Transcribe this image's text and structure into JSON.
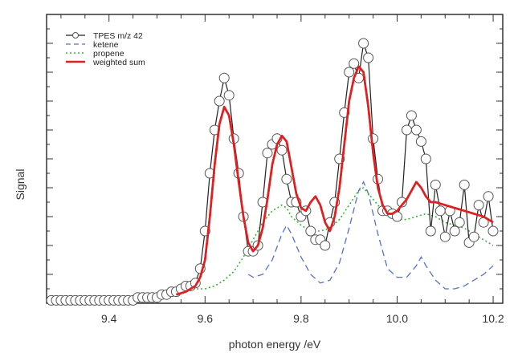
{
  "chart_data": {
    "type": "line",
    "xlabel": "photon energy /eV",
    "ylabel": "Signal",
    "xlim": [
      9.27,
      10.22
    ],
    "ylim": [
      0,
      1.0
    ],
    "x_ticks": [
      "9.4",
      "9.6",
      "9.8",
      "10.0",
      "10.2"
    ],
    "y_tick_labels": false,
    "grid": false,
    "legend_position": "top-left",
    "series": [
      {
        "name": "TPES m/z 42",
        "style": "line-with-open-circles",
        "color": "#222222",
        "x": [
          9.28,
          9.29,
          9.3,
          9.31,
          9.32,
          9.33,
          9.34,
          9.35,
          9.36,
          9.37,
          9.38,
          9.39,
          9.4,
          9.41,
          9.42,
          9.43,
          9.44,
          9.45,
          9.46,
          9.47,
          9.48,
          9.49,
          9.5,
          9.51,
          9.52,
          9.53,
          9.54,
          9.55,
          9.56,
          9.57,
          9.58,
          9.59,
          9.6,
          9.61,
          9.62,
          9.63,
          9.64,
          9.65,
          9.66,
          9.67,
          9.68,
          9.69,
          9.7,
          9.71,
          9.72,
          9.73,
          9.74,
          9.75,
          9.76,
          9.77,
          9.78,
          9.79,
          9.8,
          9.81,
          9.82,
          9.83,
          9.84,
          9.85,
          9.86,
          9.87,
          9.88,
          9.89,
          9.9,
          9.91,
          9.92,
          9.93,
          9.94,
          9.95,
          9.96,
          9.97,
          9.98,
          9.99,
          10.0,
          10.01,
          10.02,
          10.03,
          10.04,
          10.05,
          10.06,
          10.07,
          10.08,
          10.09,
          10.1,
          10.11,
          10.12,
          10.13,
          10.14,
          10.15,
          10.16,
          10.17,
          10.18,
          10.19,
          10.2
        ],
        "values": [
          0.01,
          0.01,
          0.01,
          0.01,
          0.01,
          0.01,
          0.01,
          0.01,
          0.01,
          0.01,
          0.01,
          0.01,
          0.01,
          0.01,
          0.01,
          0.01,
          0.01,
          0.01,
          0.02,
          0.02,
          0.02,
          0.02,
          0.02,
          0.03,
          0.03,
          0.04,
          0.04,
          0.05,
          0.06,
          0.06,
          0.07,
          0.12,
          0.25,
          0.45,
          0.6,
          0.7,
          0.78,
          0.72,
          0.57,
          0.45,
          0.3,
          0.18,
          0.18,
          0.2,
          0.35,
          0.52,
          0.55,
          0.57,
          0.53,
          0.43,
          0.35,
          0.35,
          0.3,
          0.32,
          0.25,
          0.22,
          0.22,
          0.2,
          0.28,
          0.35,
          0.5,
          0.66,
          0.8,
          0.83,
          0.78,
          0.9,
          0.85,
          0.57,
          0.43,
          0.32,
          0.32,
          0.31,
          0.3,
          0.35,
          0.6,
          0.65,
          0.6,
          0.56,
          0.5,
          0.25,
          0.41,
          0.32,
          0.23,
          0.32,
          0.25,
          0.28,
          0.41,
          0.21,
          0.23,
          0.34,
          0.28,
          0.37,
          0.25
        ]
      },
      {
        "name": "ketene",
        "style": "dashed",
        "color": "#5572c8",
        "x": [
          9.69,
          9.7,
          9.72,
          9.74,
          9.76,
          9.77,
          9.78,
          9.8,
          9.82,
          9.84,
          9.86,
          9.88,
          9.9,
          9.92,
          9.93,
          9.94,
          9.96,
          9.98,
          10.0,
          10.02,
          10.04,
          10.05,
          10.06,
          10.08,
          10.1,
          10.12,
          10.14,
          10.16,
          10.18,
          10.2
        ],
        "values": [
          0.1,
          0.09,
          0.1,
          0.15,
          0.24,
          0.27,
          0.24,
          0.16,
          0.1,
          0.07,
          0.08,
          0.14,
          0.26,
          0.39,
          0.42,
          0.38,
          0.24,
          0.12,
          0.09,
          0.09,
          0.13,
          0.16,
          0.13,
          0.08,
          0.05,
          0.05,
          0.06,
          0.08,
          0.1,
          0.13
        ]
      },
      {
        "name": "propene",
        "style": "dotted",
        "color": "#3bb03b",
        "x": [
          9.55,
          9.58,
          9.6,
          9.62,
          9.64,
          9.66,
          9.68,
          9.7,
          9.72,
          9.74,
          9.76,
          9.77,
          9.78,
          9.8,
          9.82,
          9.84,
          9.86,
          9.88,
          9.9,
          9.92,
          9.93,
          9.94,
          9.96,
          9.98,
          10.0,
          10.02,
          10.04,
          10.06,
          10.08,
          10.1,
          10.12,
          10.14,
          10.16,
          10.18,
          10.2
        ],
        "values": [
          0.04,
          0.05,
          0.05,
          0.06,
          0.08,
          0.11,
          0.16,
          0.22,
          0.28,
          0.32,
          0.34,
          0.33,
          0.3,
          0.27,
          0.25,
          0.25,
          0.26,
          0.29,
          0.34,
          0.39,
          0.4,
          0.38,
          0.34,
          0.3,
          0.29,
          0.29,
          0.3,
          0.31,
          0.3,
          0.28,
          0.27,
          0.26,
          0.24,
          0.22,
          0.2
        ]
      },
      {
        "name": "weighted sum",
        "style": "solid-thick",
        "color": "#e02020",
        "x": [
          9.54,
          9.56,
          9.58,
          9.59,
          9.6,
          9.61,
          9.62,
          9.63,
          9.64,
          9.65,
          9.66,
          9.67,
          9.68,
          9.69,
          9.7,
          9.71,
          9.72,
          9.73,
          9.74,
          9.75,
          9.76,
          9.77,
          9.78,
          9.79,
          9.8,
          9.81,
          9.82,
          9.83,
          9.84,
          9.85,
          9.86,
          9.87,
          9.88,
          9.89,
          9.9,
          9.91,
          9.92,
          9.93,
          9.94,
          9.95,
          9.96,
          9.97,
          9.98,
          9.99,
          10.0,
          10.01,
          10.02,
          10.03,
          10.04,
          10.05,
          10.06,
          10.07,
          10.08,
          10.1,
          10.12,
          10.14,
          10.16,
          10.18,
          10.2
        ],
        "values": [
          0.03,
          0.04,
          0.06,
          0.09,
          0.15,
          0.3,
          0.48,
          0.62,
          0.68,
          0.65,
          0.55,
          0.42,
          0.3,
          0.21,
          0.18,
          0.2,
          0.26,
          0.36,
          0.48,
          0.55,
          0.58,
          0.56,
          0.47,
          0.38,
          0.33,
          0.32,
          0.35,
          0.37,
          0.34,
          0.28,
          0.25,
          0.3,
          0.4,
          0.55,
          0.7,
          0.78,
          0.82,
          0.8,
          0.68,
          0.52,
          0.4,
          0.34,
          0.31,
          0.31,
          0.32,
          0.34,
          0.36,
          0.39,
          0.42,
          0.4,
          0.37,
          0.35,
          0.35,
          0.34,
          0.33,
          0.32,
          0.31,
          0.3,
          0.28
        ]
      }
    ]
  }
}
